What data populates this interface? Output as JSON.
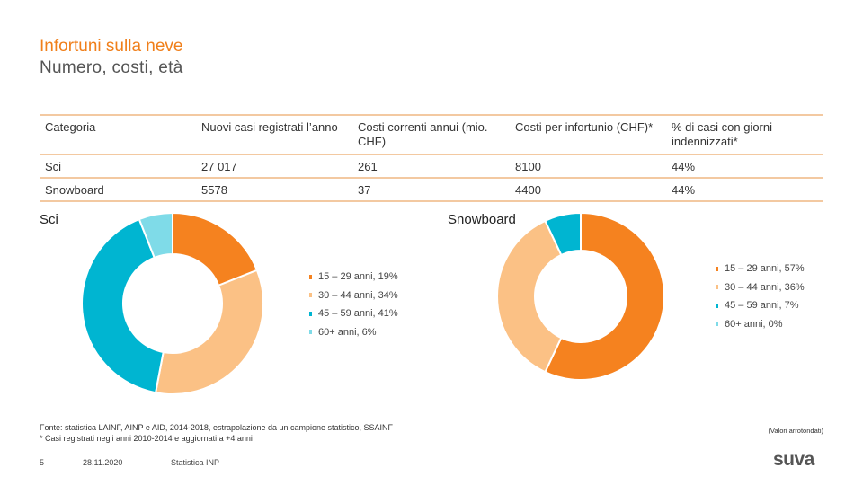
{
  "header": {
    "title": "Infortuni sulla neve",
    "subtitle": "Numero, costi, età"
  },
  "table": {
    "columns": [
      "Categoria",
      "Nuovi casi registrati l’anno",
      "Costi correnti annui (mio. CHF)",
      "Costi per infortunio (CHF)*",
      "% di casi con giorni indennizzati*"
    ],
    "rows": [
      [
        "Sci",
        "27 017",
        "261",
        "8100",
        "44%"
      ],
      [
        "Snowboard",
        "5578",
        "37",
        "4400",
        "44%"
      ]
    ]
  },
  "chart_data": [
    {
      "type": "pie",
      "title": "Sci",
      "donut": true,
      "categories": [
        "15 – 29 anni",
        "30 – 44 anni",
        "45 – 59 anni",
        "60+ anni"
      ],
      "values": [
        19,
        34,
        41,
        6
      ],
      "legend": [
        "15 – 29 anni, 19%",
        "30 – 44 anni, 34%",
        "45 – 59 anni, 41%",
        "60+ anni, 6%"
      ],
      "colors": [
        "#f5821f",
        "#fbc185",
        "#00b5d1",
        "#7fdbe8"
      ]
    },
    {
      "type": "pie",
      "title": "Snowboard",
      "donut": true,
      "categories": [
        "15 – 29 anni",
        "30 – 44 anni",
        "45 – 59 anni",
        "60+ anni"
      ],
      "values": [
        57,
        36,
        7,
        0
      ],
      "legend": [
        "15 – 29 anni, 57%",
        "30 – 44 anni, 36%",
        "45 – 59 anni, 7%",
        "60+ anni, 0%"
      ],
      "colors": [
        "#f5821f",
        "#fbc185",
        "#00b5d1",
        "#7fdbe8"
      ]
    }
  ],
  "notes": {
    "source": "Fonte: statistica LAINF, AINP e AID, 2014-2018, estrapolazione da un campione statistico, SSAINF",
    "asterisk": "* Casi registrati negli anni 2010-2014 e aggiornati a +4 anni",
    "rounded": "(Valori arrotondati)"
  },
  "footer": {
    "page": "5",
    "date": "28.11.2020",
    "label": "Statistica INP",
    "logo": "suva"
  }
}
